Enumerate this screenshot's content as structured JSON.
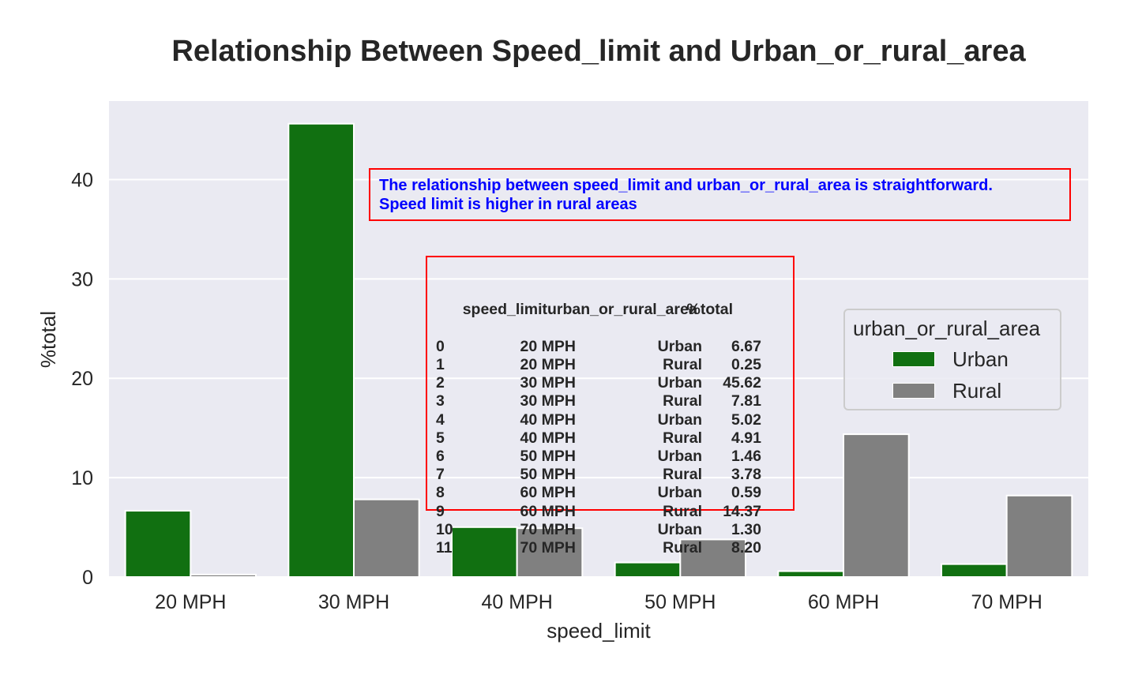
{
  "chart_data": {
    "type": "bar",
    "title": "Relationship Between Speed_limit and Urban_or_rural_area",
    "xlabel": "speed_limit",
    "ylabel": "%total",
    "categories": [
      "20 MPH",
      "30 MPH",
      "40 MPH",
      "50 MPH",
      "60 MPH",
      "70 MPH"
    ],
    "series": [
      {
        "name": "Urban",
        "color": "#117011",
        "values": [
          6.67,
          45.62,
          5.02,
          1.46,
          0.59,
          1.3
        ]
      },
      {
        "name": "Rural",
        "color": "#808080",
        "values": [
          0.25,
          7.81,
          4.91,
          3.78,
          14.37,
          8.2
        ]
      }
    ],
    "ylim": [
      0,
      47.9
    ],
    "yticks": [
      0,
      10,
      20,
      30,
      40
    ],
    "grid": true,
    "background": "#eaeaf2",
    "legend": {
      "title": "urban_or_rural_area",
      "placement": "center-right"
    },
    "annotation": {
      "line1": "The relationship between speed_limit and urban_or_rural_area is straightforward.",
      "line2": "Speed limit is higher in rural areas"
    },
    "table": {
      "headers": [
        "speed_limit",
        "urban_or_rural_area",
        "%total"
      ],
      "rows": [
        [
          "0",
          "20 MPH",
          "Urban",
          "6.67"
        ],
        [
          "1",
          "20 MPH",
          "Rural",
          "0.25"
        ],
        [
          "2",
          "30 MPH",
          "Urban",
          "45.62"
        ],
        [
          "3",
          "30 MPH",
          "Rural",
          "7.81"
        ],
        [
          "4",
          "40 MPH",
          "Urban",
          "5.02"
        ],
        [
          "5",
          "40 MPH",
          "Rural",
          "4.91"
        ],
        [
          "6",
          "50 MPH",
          "Urban",
          "1.46"
        ],
        [
          "7",
          "50 MPH",
          "Rural",
          "3.78"
        ],
        [
          "8",
          "60 MPH",
          "Urban",
          "0.59"
        ],
        [
          "9",
          "60 MPH",
          "Rural",
          "14.37"
        ],
        [
          "10",
          "70 MPH",
          "Urban",
          "1.30"
        ],
        [
          "11",
          "70 MPH",
          "Rural",
          "8.20"
        ]
      ]
    }
  }
}
